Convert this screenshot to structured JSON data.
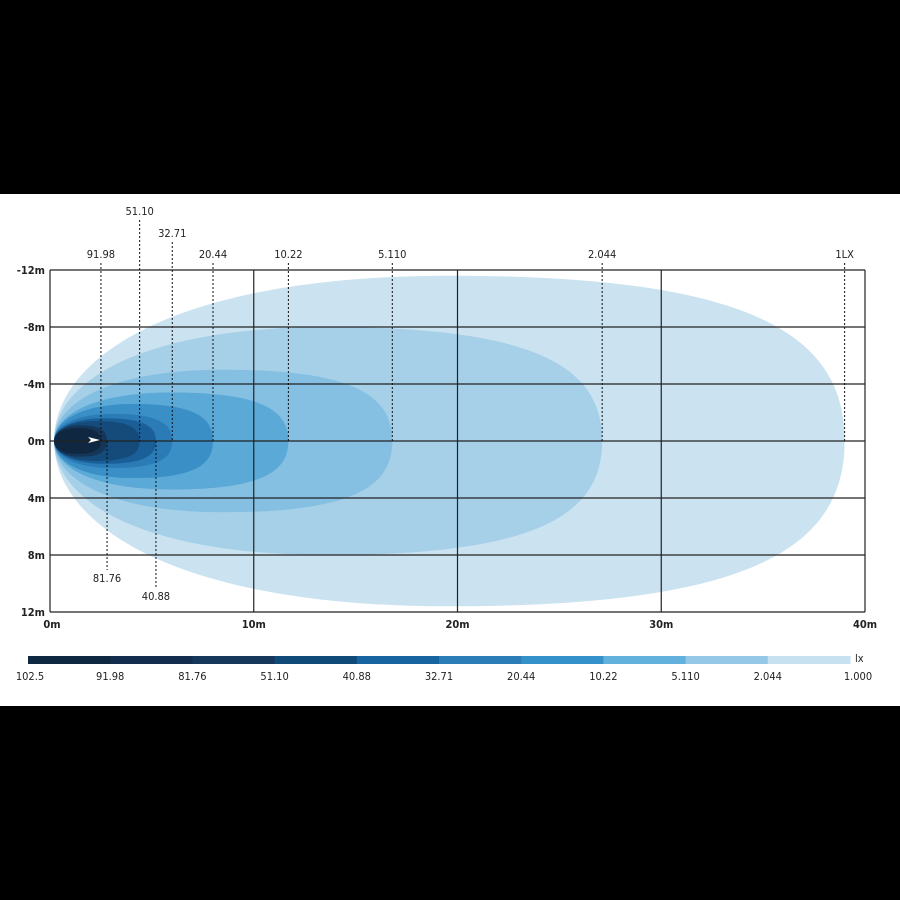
{
  "chart_data": {
    "type": "heatmap",
    "title": "",
    "x_axis": {
      "range": [
        0,
        40
      ],
      "ticks": [
        "0m",
        "10m",
        "20m",
        "30m",
        "40m"
      ],
      "values": [
        0,
        10,
        20,
        30,
        40
      ]
    },
    "y_axis": {
      "range": [
        -12,
        12
      ],
      "ticks": [
        "-12m",
        "-8m",
        "-4m",
        "0m",
        "4m",
        "8m",
        "12m"
      ],
      "values": [
        -12,
        -8,
        -4,
        0,
        4,
        8,
        12
      ]
    },
    "grid": true,
    "contours": [
      {
        "label": "1LX",
        "lux": 1.0,
        "reach_m": 39.0,
        "half_width_m": 11.6,
        "label_position": "top",
        "color": "#cbe3f1"
      },
      {
        "label": "2.044",
        "lux": 2.044,
        "reach_m": 27.1,
        "half_width_m": 8.0,
        "label_position": "top",
        "color": "#a6cfe8"
      },
      {
        "label": "5.110",
        "lux": 5.11,
        "reach_m": 16.8,
        "half_width_m": 5.0,
        "label_position": "top",
        "color": "#85bfe2"
      },
      {
        "label": "10.22",
        "lux": 10.22,
        "reach_m": 11.7,
        "half_width_m": 3.4,
        "label_position": "top",
        "color": "#5ba9d6"
      },
      {
        "label": "20.44",
        "lux": 20.44,
        "reach_m": 8.0,
        "half_width_m": 2.6,
        "label_position": "top",
        "color": "#3a8fc6"
      },
      {
        "label": "32.71",
        "lux": 32.71,
        "reach_m": 6.0,
        "half_width_m": 1.9,
        "label_position": "top",
        "color": "#2a7bb6"
      },
      {
        "label": "40.88",
        "lux": 40.88,
        "reach_m": 5.2,
        "half_width_m": 1.6,
        "label_position": "bottom",
        "color": "#1a5f98"
      },
      {
        "label": "51.10",
        "lux": 51.1,
        "reach_m": 4.4,
        "half_width_m": 1.4,
        "label_position": "top",
        "color": "#144b7a"
      },
      {
        "label": "81.76",
        "lux": 81.76,
        "reach_m": 2.8,
        "half_width_m": 1.1,
        "label_position": "bottom",
        "color": "#153658"
      },
      {
        "label": "91.98",
        "lux": 91.98,
        "reach_m": 2.5,
        "half_width_m": 0.9,
        "label_position": "top",
        "color": "#0f2740"
      }
    ],
    "legend": {
      "unit": "lx",
      "labels": [
        "102.5",
        "91.98",
        "81.76",
        "51.10",
        "40.88",
        "32.71",
        "20.44",
        "10.22",
        "5.110",
        "2.044",
        "1.000"
      ],
      "colors": [
        "#0f2841",
        "#122d4d",
        "#16385a",
        "#0f4a78",
        "#1764a0",
        "#2a7db7",
        "#3591c9",
        "#62b0dc",
        "#94c8e6",
        "#c7e1f1"
      ],
      "placement": "bottom"
    }
  }
}
